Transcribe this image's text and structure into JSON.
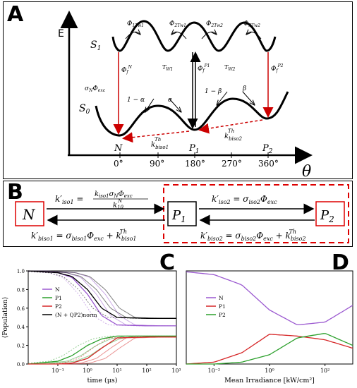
{
  "panelA": {
    "letter": "A",
    "e_label": "E",
    "theta_label": "θ",
    "s1_label": "S1",
    "s0_label": "S0",
    "phi_1t_w1": "Φ1Tw1",
    "phi_2t_w1": "Φ2Tw1",
    "phi_2t_w2": "Φ2Tw2",
    "phi_3t_w2": "Φ3Tw2",
    "tw1": "Tw1",
    "tw2": "Tw2",
    "phi_f_n": "Φf N",
    "phi_f_p1": "Φf P1",
    "phi_f_p2": "Φf P2",
    "sigma_n_phi": "σN Φexc",
    "one_minus_alpha": "1 − α",
    "alpha": "α",
    "one_minus_beta": "1 − β",
    "beta": "β",
    "k_biso1_th": "kTh biso1",
    "k_biso2_th": "kTh biso2",
    "state_n": "N",
    "state_p1": "P1",
    "state_p2": "P2",
    "angles": [
      "0°",
      "90°",
      "180°",
      "270°",
      "360°"
    ]
  },
  "panelB": {
    "letter": "B",
    "n_box": "N",
    "p1_box": "P1",
    "p2_box": "P2",
    "k_iso1": "k′iso1 = kiso1 σN Φexc / kN10",
    "k_biso1": "k′biso1 = σbiso1 Φexc + kThbiso1",
    "k_iso2": "k′iso2 = σiso2 Φexc",
    "k_biso2": "k′biso2 = σbiso2 Φexc + kThbiso2"
  },
  "panelC": {
    "letter": "C",
    "ylabel": "⟨Population⟩",
    "xlabel": "time (μs)",
    "xticks": [
      "10⁻¹",
      "10⁰",
      "10¹",
      "10²",
      "10³"
    ],
    "legend": [
      "N",
      "P1",
      "P2",
      "(N + QP2)norm"
    ],
    "colors": {
      "N": "#9b59d0",
      "P1": "#2ca02c",
      "P2": "#d62728",
      "norm": "#000000"
    }
  },
  "panelD": {
    "letter": "D",
    "xlabel": "Mean Irradiance [kW/cm²]",
    "xticks": [
      "10⁻²",
      "10⁰",
      "10²"
    ],
    "legend": [
      "N",
      "P1",
      "P2"
    ],
    "colors": {
      "N": "#9b59d0",
      "P1": "#d62728",
      "P2": "#2ca02c"
    }
  },
  "chart_data": [
    {
      "type": "line",
      "x_scale": "log",
      "xlabel": "time (μs)",
      "ylabel": "⟨Population⟩",
      "xlim": [
        0.01,
        1000
      ],
      "ylim": [
        0,
        1
      ],
      "series": [
        {
          "name": "N",
          "x": [
            0.01,
            0.1,
            0.3,
            1,
            3,
            10,
            100,
            1000
          ],
          "values": [
            1.0,
            0.98,
            0.93,
            0.75,
            0.52,
            0.42,
            0.41,
            0.41
          ]
        },
        {
          "name": "P1",
          "x": [
            0.01,
            0.1,
            0.3,
            1,
            3,
            10,
            100,
            1000
          ],
          "values": [
            0.0,
            0.03,
            0.09,
            0.2,
            0.27,
            0.3,
            0.3,
            0.3
          ]
        },
        {
          "name": "P2",
          "x": [
            0.01,
            0.1,
            0.3,
            1,
            3,
            10,
            100,
            1000
          ],
          "values": [
            0.0,
            0.0,
            0.01,
            0.06,
            0.17,
            0.28,
            0.29,
            0.29
          ]
        },
        {
          "name": "(N + QP2)norm",
          "x": [
            0.01,
            0.1,
            0.3,
            1,
            3,
            10,
            100,
            1000
          ],
          "values": [
            1.0,
            0.98,
            0.94,
            0.8,
            0.6,
            0.5,
            0.49,
            0.49
          ]
        }
      ]
    },
    {
      "type": "line",
      "x_scale": "log",
      "xlabel": "Mean Irradiance [kW/cm²]",
      "xlim": [
        0.001,
        1000
      ],
      "ylim": [
        0,
        1
      ],
      "series": [
        {
          "name": "N",
          "x": [
            0.001,
            0.01,
            0.1,
            1,
            10,
            100,
            1000
          ],
          "values": [
            0.99,
            0.96,
            0.85,
            0.58,
            0.42,
            0.45,
            0.63
          ]
        },
        {
          "name": "P1",
          "x": [
            0.001,
            0.01,
            0.1,
            1,
            10,
            100,
            1000
          ],
          "values": [
            0.0,
            0.02,
            0.12,
            0.32,
            0.3,
            0.26,
            0.17
          ]
        },
        {
          "name": "P2",
          "x": [
            0.001,
            0.01,
            0.1,
            1,
            10,
            100,
            1000
          ],
          "values": [
            0.0,
            0.0,
            0.02,
            0.1,
            0.28,
            0.33,
            0.2
          ]
        }
      ]
    }
  ]
}
